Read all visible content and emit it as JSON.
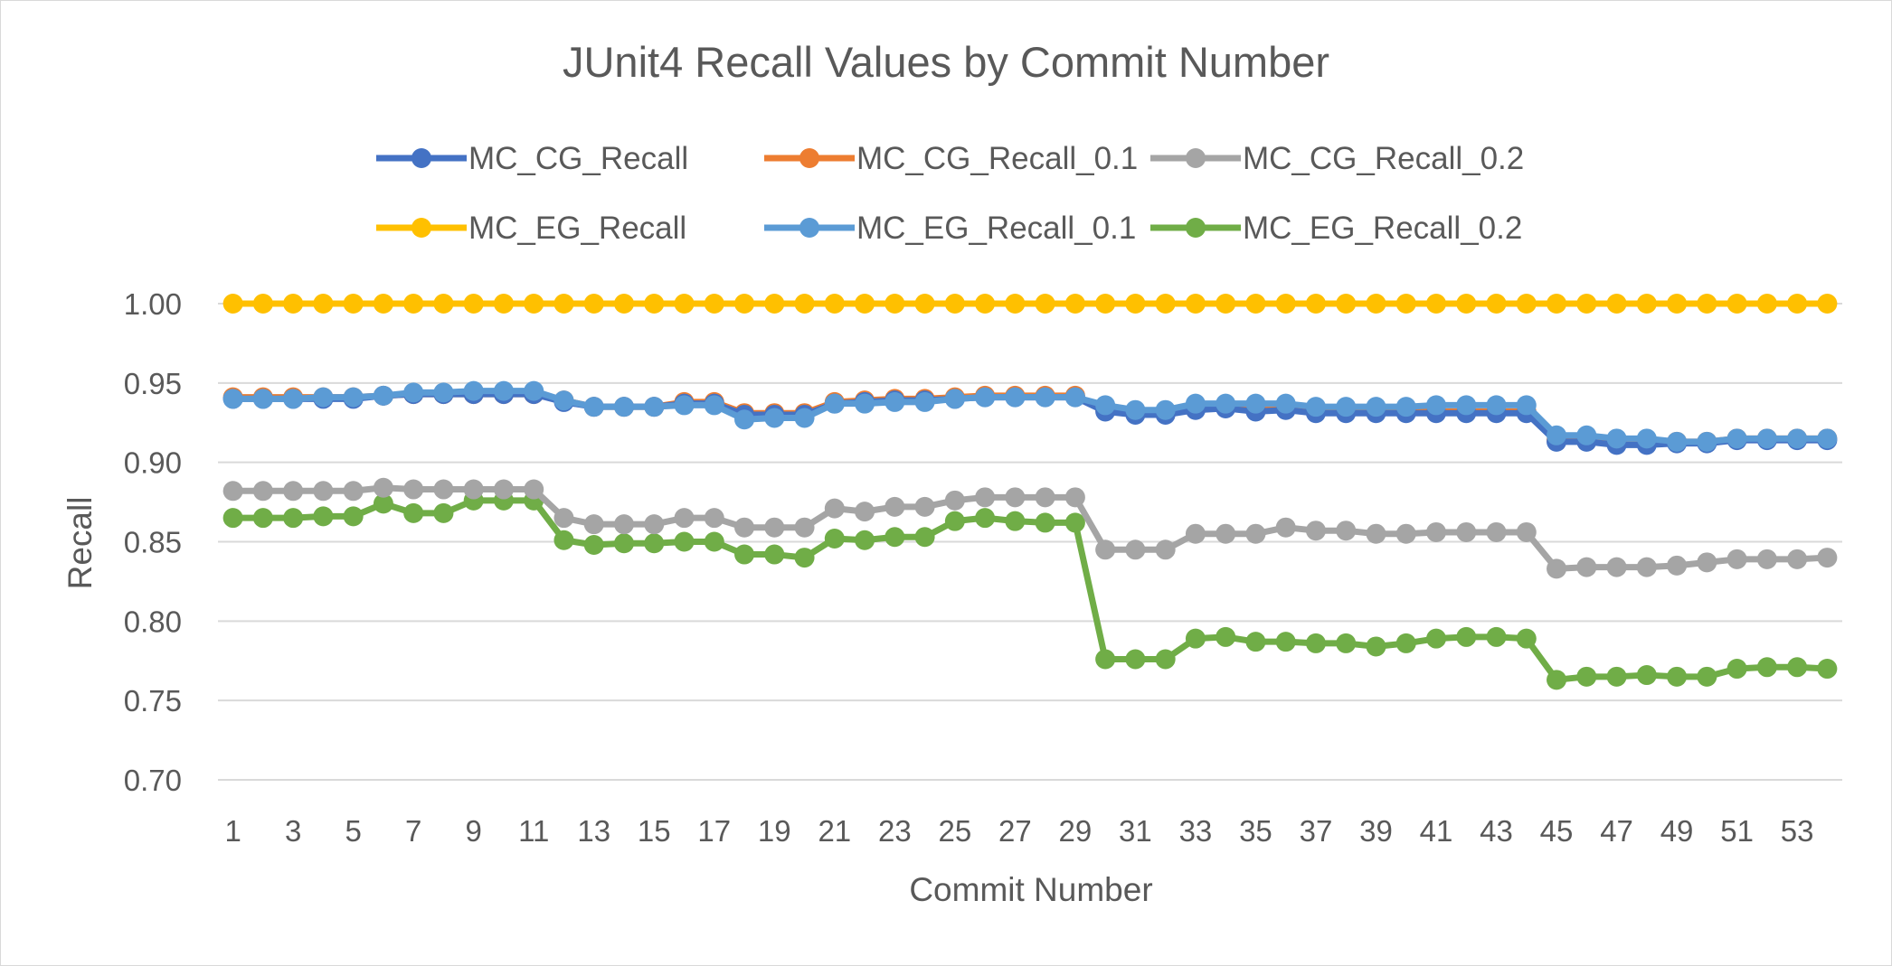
{
  "chart_data": {
    "type": "line",
    "title": "JUnit4 Recall Values by Commit Number",
    "xlabel": "Commit Number",
    "ylabel": "Recall",
    "ylim": [
      0.7,
      1.0
    ],
    "yticks": [
      "0.70",
      "0.75",
      "0.80",
      "0.85",
      "0.90",
      "0.95",
      "1.00"
    ],
    "x_tick_labels": [
      "1",
      "3",
      "5",
      "7",
      "9",
      "11",
      "13",
      "15",
      "17",
      "19",
      "21",
      "23",
      "25",
      "27",
      "29",
      "31",
      "33",
      "35",
      "37",
      "39",
      "41",
      "43",
      "45",
      "47",
      "49",
      "51",
      "53"
    ],
    "x": [
      1,
      2,
      3,
      4,
      5,
      6,
      7,
      8,
      9,
      10,
      11,
      12,
      13,
      14,
      15,
      16,
      17,
      18,
      19,
      20,
      21,
      22,
      23,
      24,
      25,
      26,
      27,
      28,
      29,
      30,
      31,
      32,
      33,
      34,
      35,
      36,
      37,
      38,
      39,
      40,
      41,
      42,
      43,
      44,
      45,
      46,
      47,
      48,
      49,
      50,
      51,
      52,
      53,
      54
    ],
    "grid": "horizontal",
    "legend_position": "top",
    "series": [
      {
        "name": "MC_CG_Recall",
        "color": "#4472c4",
        "values": [
          0.94,
          0.94,
          0.94,
          0.94,
          0.94,
          0.942,
          0.943,
          0.943,
          0.943,
          0.943,
          0.943,
          0.938,
          0.935,
          0.935,
          0.935,
          0.937,
          0.937,
          0.93,
          0.93,
          0.93,
          0.937,
          0.938,
          0.939,
          0.939,
          0.94,
          0.941,
          0.941,
          0.941,
          0.941,
          0.932,
          0.93,
          0.93,
          0.933,
          0.934,
          0.932,
          0.933,
          0.931,
          0.931,
          0.931,
          0.931,
          0.931,
          0.931,
          0.931,
          0.931,
          0.913,
          0.913,
          0.911,
          0.911,
          0.912,
          0.912,
          0.914,
          0.914,
          0.914,
          0.914
        ]
      },
      {
        "name": "MC_CG_Recall_0.1",
        "color": "#ed7d31",
        "values": [
          0.941,
          0.941,
          0.941,
          0.941,
          0.941,
          0.942,
          0.943,
          0.943,
          0.943,
          0.943,
          0.943,
          0.939,
          0.935,
          0.935,
          0.935,
          0.938,
          0.938,
          0.931,
          0.931,
          0.931,
          0.938,
          0.939,
          0.94,
          0.94,
          0.941,
          0.942,
          0.942,
          0.942,
          0.942,
          0.933,
          0.931,
          0.931,
          0.934,
          0.935,
          0.933,
          0.934,
          0.932,
          0.932,
          0.932,
          0.932,
          0.932,
          0.932,
          0.932,
          0.932,
          0.914,
          0.914,
          0.912,
          0.912,
          0.913,
          0.913,
          0.915,
          0.915,
          0.915,
          0.915
        ]
      },
      {
        "name": "MC_CG_Recall_0.2",
        "color": "#a5a5a5",
        "values": [
          0.882,
          0.882,
          0.882,
          0.882,
          0.882,
          0.884,
          0.883,
          0.883,
          0.883,
          0.883,
          0.883,
          0.865,
          0.861,
          0.861,
          0.861,
          0.865,
          0.865,
          0.859,
          0.859,
          0.859,
          0.871,
          0.869,
          0.872,
          0.872,
          0.876,
          0.878,
          0.878,
          0.878,
          0.878,
          0.845,
          0.845,
          0.845,
          0.855,
          0.855,
          0.855,
          0.859,
          0.857,
          0.857,
          0.855,
          0.855,
          0.856,
          0.856,
          0.856,
          0.856,
          0.833,
          0.834,
          0.834,
          0.834,
          0.835,
          0.837,
          0.839,
          0.839,
          0.839,
          0.84
        ]
      },
      {
        "name": "MC_EG_Recall",
        "color": "#ffc000",
        "values": [
          1.0,
          1.0,
          1.0,
          1.0,
          1.0,
          1.0,
          1.0,
          1.0,
          1.0,
          1.0,
          1.0,
          1.0,
          1.0,
          1.0,
          1.0,
          1.0,
          1.0,
          1.0,
          1.0,
          1.0,
          1.0,
          1.0,
          1.0,
          1.0,
          1.0,
          1.0,
          1.0,
          1.0,
          1.0,
          1.0,
          1.0,
          1.0,
          1.0,
          1.0,
          1.0,
          1.0,
          1.0,
          1.0,
          1.0,
          1.0,
          1.0,
          1.0,
          1.0,
          1.0,
          1.0,
          1.0,
          1.0,
          1.0,
          1.0,
          1.0,
          1.0,
          1.0,
          1.0,
          1.0
        ]
      },
      {
        "name": "MC_EG_Recall_0.1",
        "color": "#5b9bd5",
        "values": [
          0.94,
          0.94,
          0.94,
          0.941,
          0.941,
          0.942,
          0.944,
          0.944,
          0.945,
          0.945,
          0.945,
          0.939,
          0.935,
          0.935,
          0.935,
          0.936,
          0.936,
          0.927,
          0.928,
          0.928,
          0.937,
          0.937,
          0.938,
          0.938,
          0.94,
          0.941,
          0.941,
          0.941,
          0.941,
          0.936,
          0.933,
          0.933,
          0.937,
          0.937,
          0.937,
          0.937,
          0.935,
          0.935,
          0.935,
          0.935,
          0.936,
          0.936,
          0.936,
          0.936,
          0.917,
          0.917,
          0.915,
          0.915,
          0.913,
          0.913,
          0.915,
          0.915,
          0.915,
          0.915
        ]
      },
      {
        "name": "MC_EG_Recall_0.2",
        "color": "#70ad47",
        "values": [
          0.865,
          0.865,
          0.865,
          0.866,
          0.866,
          0.874,
          0.868,
          0.868,
          0.876,
          0.876,
          0.876,
          0.851,
          0.848,
          0.849,
          0.849,
          0.85,
          0.85,
          0.842,
          0.842,
          0.84,
          0.852,
          0.851,
          0.853,
          0.853,
          0.863,
          0.865,
          0.863,
          0.862,
          0.862,
          0.776,
          0.776,
          0.776,
          0.789,
          0.79,
          0.787,
          0.787,
          0.786,
          0.786,
          0.784,
          0.786,
          0.789,
          0.79,
          0.79,
          0.789,
          0.763,
          0.765,
          0.765,
          0.766,
          0.765,
          0.765,
          0.77,
          0.771,
          0.771,
          0.77
        ]
      }
    ]
  }
}
